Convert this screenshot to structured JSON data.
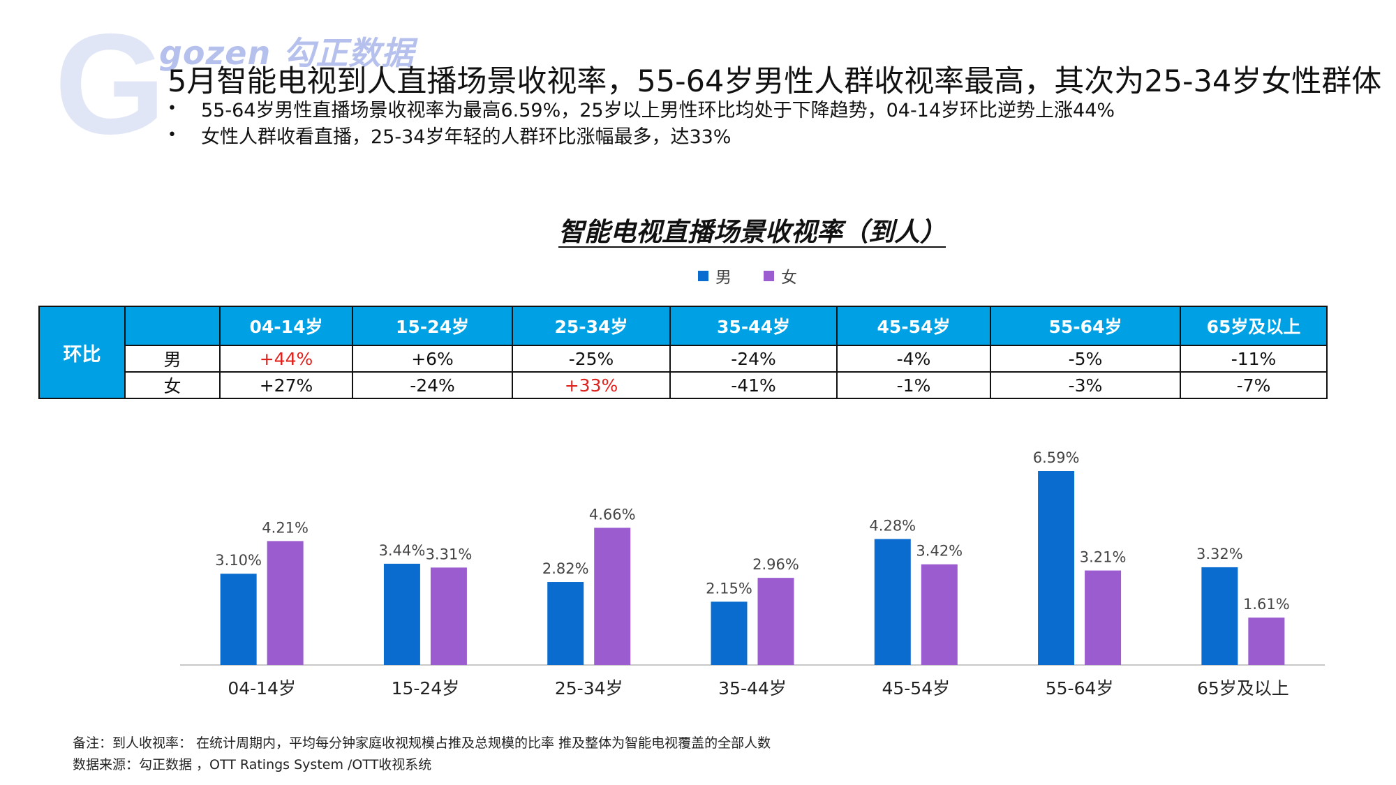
{
  "brand": {
    "letter": "G",
    "name": "gozen 勾正数据"
  },
  "headline": "5月智能电视到人直播场景收视率，55-64岁男性人群收视率最高，其次为25-34岁女性群体",
  "bullets": [
    "55-64岁男性直播场景收视率为最高6.59%，25岁以上男性环比均处于下降趋势，04-14岁环比逆势上涨44%",
    "女性人群收看直播，25-34岁年轻的人群环比涨幅最多，达33%"
  ],
  "bullet_symbol": "•",
  "legend": [
    {
      "label": "男",
      "color": "#0a6ccf"
    },
    {
      "label": "女",
      "color": "#9a5ccf"
    }
  ],
  "table": {
    "side_label": "环比",
    "highlight_color": "#e0201b",
    "age_groups": [
      "04-14岁",
      "15-24岁",
      "25-34岁",
      "35-44岁",
      "45-54岁",
      "55-64岁",
      "65岁及以上"
    ],
    "rows": [
      {
        "label": "男",
        "values": [
          "+44%",
          "+6%",
          "-25%",
          "-24%",
          "-4%",
          "-5%",
          "-11%"
        ],
        "highlight": [
          0
        ]
      },
      {
        "label": "女",
        "values": [
          "+27%",
          "-24%",
          "+33%",
          "-41%",
          "-1%",
          "-3%",
          "-7%"
        ],
        "highlight": [
          2
        ]
      }
    ]
  },
  "chart_data": {
    "type": "bar",
    "title": "智能电视直播场景收视率（到人）",
    "categories": [
      "04-14岁",
      "15-24岁",
      "25-34岁",
      "35-44岁",
      "45-54岁",
      "55-64岁",
      "65岁及以上"
    ],
    "series": [
      {
        "name": "男",
        "color": "#0a6ccf",
        "values": [
          3.1,
          3.44,
          2.82,
          2.15,
          4.28,
          6.59,
          3.32
        ],
        "labels": [
          "3.10%",
          "3.44%",
          "2.82%",
          "2.15%",
          "4.28%",
          "6.59%",
          "3.32%"
        ]
      },
      {
        "name": "女",
        "color": "#9a5ccf",
        "values": [
          4.21,
          3.31,
          4.66,
          2.96,
          3.42,
          3.21,
          1.61
        ],
        "labels": [
          "4.21%",
          "3.31%",
          "4.66%",
          "2.96%",
          "3.42%",
          "3.21%",
          "1.61%"
        ]
      }
    ],
    "unit": "%",
    "ylim": [
      0,
      6.59
    ],
    "grid": false,
    "legend_position": "top-center"
  },
  "notes": [
    "备注：到人收视率：  在统计周期内，平均每分钟家庭收视规模占推及总规模的比率 推及整体为智能电视覆盖的全部人数",
    "数据来源：勾正数据 ，OTT Ratings System /OTT收视系统"
  ]
}
